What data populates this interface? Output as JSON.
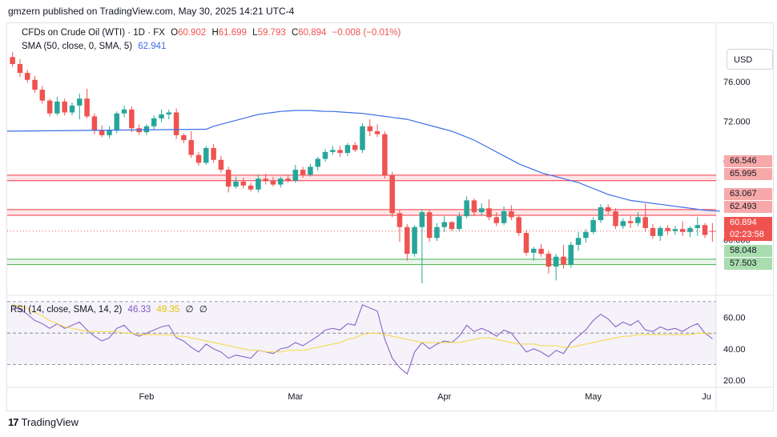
{
  "header": {
    "publisher": "gmzern published on TradingView.com, May 30, 2025 14:21 UTC-4"
  },
  "legend": {
    "symbol": "CFDs on Crude Oil (WTI) · 1D · FX",
    "open_label": "O",
    "open": "60.902",
    "high_label": "H",
    "high": "61.699",
    "low_label": "L",
    "low": "59.793",
    "close_label": "C",
    "close": "60.894",
    "change": "−0.008 (−0.01%)",
    "sma_label": "SMA (50, close, 0, SMA, 5)",
    "sma_value": "62.941",
    "rsi_label": "RSI (14, close, SMA, 14, 2)",
    "rsi_value": "46.33",
    "rsi_sma_value": "49.35",
    "rsi_extra1": "∅",
    "rsi_extra2": "∅"
  },
  "currency_button": "USD",
  "price_tags": {
    "resistance_upper_top": "66.546",
    "resistance_upper_bottom": "65.995",
    "resistance_lower_top": "63.067",
    "resistance_lower_bottom": "62.493",
    "last_price": "60.894",
    "countdown": "02:23:58",
    "support_top": "58.048",
    "support_bottom": "57.503"
  },
  "footer": {
    "brand": "TradingView",
    "logo": "17"
  },
  "colors": {
    "up": "#26a69a",
    "down": "#ef5350",
    "sma": "#3d6ee6",
    "rsi": "#7e57c2",
    "rsi_sma": "#f5d742",
    "resistance": "#f23645",
    "support": "#4caf50"
  },
  "chart_data": [
    {
      "type": "candlestick",
      "y_ticks": [
        "76.000",
        "72.000",
        "68.000",
        "60.000"
      ],
      "x_ticks": [
        "Feb",
        "Mar",
        "Apr",
        "May",
        "Ju"
      ],
      "ylim": [
        55.2,
        79.5
      ],
      "last_price": 60.894,
      "resistance_zones": [
        [
          65.995,
          66.546
        ],
        [
          62.493,
          63.067
        ]
      ],
      "support_zone": [
        57.503,
        58.048
      ],
      "candles": [
        [
          78.5,
          79.0,
          77.5,
          77.8
        ],
        [
          77.8,
          78.3,
          76.5,
          76.9
        ],
        [
          76.9,
          77.2,
          75.9,
          76.2
        ],
        [
          76.2,
          76.6,
          74.9,
          75.2
        ],
        [
          75.2,
          75.6,
          73.8,
          74.1
        ],
        [
          74.1,
          74.3,
          72.5,
          72.8
        ],
        [
          72.8,
          74.5,
          72.6,
          74.0
        ],
        [
          74.0,
          74.3,
          72.6,
          72.9
        ],
        [
          72.9,
          73.9,
          72.6,
          73.6
        ],
        [
          73.6,
          74.8,
          72.2,
          74.3
        ],
        [
          74.3,
          75.3,
          72.3,
          72.5
        ],
        [
          72.5,
          72.8,
          70.7,
          71.1
        ],
        [
          71.1,
          71.6,
          70.4,
          70.6
        ],
        [
          70.6,
          71.5,
          70.3,
          71.1
        ],
        [
          71.1,
          73.0,
          70.8,
          72.8
        ],
        [
          72.8,
          73.6,
          72.4,
          73.2
        ],
        [
          73.2,
          73.5,
          70.9,
          71.3
        ],
        [
          71.3,
          71.7,
          70.6,
          70.9
        ],
        [
          70.9,
          71.7,
          70.6,
          71.5
        ],
        [
          71.5,
          72.6,
          71.2,
          72.3
        ],
        [
          72.3,
          73.2,
          71.9,
          72.7
        ],
        [
          72.7,
          73.2,
          72.2,
          72.9
        ],
        [
          72.9,
          73.3,
          70.2,
          70.6
        ],
        [
          70.6,
          70.8,
          69.8,
          70.1
        ],
        [
          70.1,
          71.0,
          68.3,
          68.6
        ],
        [
          68.6,
          68.9,
          67.5,
          67.8
        ],
        [
          67.8,
          69.5,
          67.6,
          69.3
        ],
        [
          69.3,
          69.7,
          67.8,
          68.1
        ],
        [
          68.1,
          68.5,
          66.8,
          67.1
        ],
        [
          67.1,
          67.4,
          64.8,
          65.4
        ],
        [
          65.4,
          66.4,
          65.2,
          65.9
        ],
        [
          65.9,
          66.3,
          65.2,
          65.5
        ],
        [
          65.5,
          65.8,
          64.9,
          65.1
        ],
        [
          65.1,
          66.6,
          64.8,
          66.2
        ],
        [
          66.2,
          66.7,
          65.6,
          66.0
        ],
        [
          66.0,
          66.4,
          65.4,
          65.6
        ],
        [
          65.6,
          66.4,
          65.3,
          66.2
        ],
        [
          66.2,
          66.6,
          65.8,
          66.0
        ],
        [
          66.0,
          67.6,
          65.8,
          67.1
        ],
        [
          67.1,
          67.4,
          66.3,
          66.6
        ],
        [
          66.6,
          67.7,
          66.4,
          67.4
        ],
        [
          67.4,
          68.4,
          67.0,
          68.2
        ],
        [
          68.2,
          69.2,
          67.9,
          68.9
        ],
        [
          68.9,
          69.5,
          68.6,
          69.1
        ],
        [
          69.1,
          69.5,
          68.4,
          68.8
        ],
        [
          68.8,
          69.8,
          68.5,
          69.6
        ],
        [
          69.6,
          69.9,
          68.9,
          69.1
        ],
        [
          69.1,
          71.8,
          68.8,
          71.5
        ],
        [
          71.5,
          72.2,
          70.5,
          71.0
        ],
        [
          71.0,
          71.7,
          70.4,
          70.7
        ],
        [
          70.7,
          71.0,
          66.2,
          66.5
        ],
        [
          66.5,
          66.9,
          62.3,
          62.7
        ],
        [
          62.7,
          63.0,
          59.8,
          61.3
        ],
        [
          61.3,
          61.6,
          57.9,
          58.6
        ],
        [
          58.6,
          61.5,
          58.3,
          61.3
        ],
        [
          61.3,
          63.1,
          55.6,
          62.8
        ],
        [
          62.8,
          63.0,
          59.8,
          60.2
        ],
        [
          60.2,
          61.7,
          59.9,
          61.3
        ],
        [
          61.3,
          62.4,
          60.8,
          61.8
        ],
        [
          61.8,
          61.9,
          60.9,
          61.1
        ],
        [
          61.1,
          62.8,
          60.9,
          62.4
        ],
        [
          62.4,
          64.4,
          62.2,
          64.0
        ],
        [
          64.0,
          64.2,
          62.4,
          62.8
        ],
        [
          62.8,
          63.7,
          62.5,
          63.2
        ],
        [
          63.2,
          64.1,
          62.0,
          62.3
        ],
        [
          62.3,
          62.8,
          61.4,
          61.7
        ],
        [
          61.7,
          63.4,
          61.5,
          62.9
        ],
        [
          62.9,
          63.5,
          62.0,
          62.3
        ],
        [
          62.3,
          62.5,
          60.4,
          60.7
        ],
        [
          60.7,
          61.0,
          58.4,
          58.7
        ],
        [
          58.7,
          59.3,
          57.9,
          59.1
        ],
        [
          59.1,
          59.6,
          58.3,
          58.6
        ],
        [
          58.6,
          58.9,
          56.6,
          57.3
        ],
        [
          57.3,
          58.6,
          55.9,
          58.3
        ],
        [
          58.3,
          59.5,
          57.1,
          57.5
        ],
        [
          57.5,
          59.8,
          57.2,
          59.5
        ],
        [
          59.5,
          60.8,
          58.9,
          60.2
        ],
        [
          60.2,
          61.1,
          59.7,
          60.8
        ],
        [
          60.8,
          62.3,
          60.6,
          62.0
        ],
        [
          62.0,
          63.6,
          61.7,
          63.3
        ],
        [
          63.3,
          63.6,
          62.6,
          62.9
        ],
        [
          62.9,
          63.2,
          61.1,
          61.4
        ],
        [
          61.4,
          62.2,
          61.1,
          61.9
        ],
        [
          61.9,
          62.4,
          61.2,
          61.7
        ],
        [
          61.7,
          62.8,
          61.4,
          62.3
        ],
        [
          62.3,
          63.7,
          60.8,
          61.2
        ],
        [
          61.2,
          61.6,
          60.1,
          60.4
        ],
        [
          60.4,
          61.4,
          59.9,
          61.2
        ],
        [
          61.2,
          61.5,
          60.5,
          60.9
        ],
        [
          60.9,
          61.4,
          60.5,
          61.1
        ],
        [
          61.1,
          61.9,
          60.4,
          60.8
        ],
        [
          60.8,
          61.4,
          60.3,
          61.2
        ],
        [
          61.2,
          62.3,
          60.4,
          61.5
        ],
        [
          61.5,
          61.7,
          60.2,
          60.5
        ],
        [
          60.902,
          61.699,
          59.793,
          60.894
        ]
      ],
      "sma_series": [
        71.2,
        71.5,
        71.7,
        71.9,
        72.1,
        72.3,
        72.5,
        72.7,
        72.8,
        72.9,
        73.0,
        73.05,
        73.1,
        73.1,
        73.1,
        73.05,
        73.0,
        73.0,
        72.95,
        72.9,
        72.85,
        72.8,
        72.7,
        72.6,
        72.5,
        72.4,
        72.3,
        72.2,
        72.0,
        71.8,
        71.6,
        71.4,
        71.2,
        71.0,
        70.7,
        70.4,
        70.1,
        69.7,
        69.3,
        68.9,
        68.5,
        68.1,
        67.7,
        67.4,
        67.1,
        66.8,
        66.6,
        66.4,
        66.2,
        66.0,
        65.8,
        65.5,
        65.2,
        64.9,
        64.6,
        64.4,
        64.2,
        64.0,
        63.9,
        63.8,
        63.7,
        63.6,
        63.5,
        63.4,
        63.3,
        63.2,
        63.1,
        63.0,
        62.95,
        62.9
      ],
      "sma_start_index": 26
    },
    {
      "type": "line",
      "title": "RSI (14, close, SMA, 14, 2)",
      "y_ticks": [
        "60.00",
        "40.00",
        "20.00"
      ],
      "ylim": [
        17,
        73
      ],
      "band_levels": [
        70,
        50,
        30
      ],
      "series": [
        {
          "name": "RSI",
          "values": [
            67,
            65,
            62,
            58,
            56,
            53,
            56,
            53,
            55,
            57,
            52,
            48,
            45,
            47,
            53,
            55,
            50,
            48,
            50,
            52,
            54,
            55,
            47,
            45,
            41,
            38,
            43,
            40,
            38,
            34,
            36,
            35,
            34,
            39,
            38,
            37,
            40,
            41,
            44,
            42,
            45,
            48,
            52,
            53,
            52,
            56,
            55,
            68,
            66,
            64,
            46,
            34,
            28,
            24,
            38,
            44,
            40,
            43,
            45,
            44,
            48,
            55,
            51,
            53,
            51,
            48,
            52,
            50,
            44,
            38,
            40,
            38,
            35,
            39,
            37,
            44,
            48,
            52,
            58,
            62,
            59,
            54,
            57,
            55,
            58,
            52,
            51,
            54,
            52,
            53,
            51,
            54,
            56,
            50,
            46.33
          ]
        },
        {
          "name": "RSI SMA",
          "values": [
            68,
            67,
            66,
            63,
            61,
            58,
            56,
            54,
            53,
            52,
            51,
            51,
            51,
            51,
            51,
            50,
            50,
            49,
            49,
            49,
            49,
            49,
            48,
            48,
            47,
            46,
            45,
            44,
            43,
            42,
            41,
            40,
            39,
            39,
            38,
            38,
            38,
            39,
            39,
            39,
            40,
            41,
            42,
            43,
            44,
            46,
            47,
            49,
            50,
            50,
            49,
            48,
            47,
            46,
            45,
            44,
            44,
            44,
            44,
            44,
            44,
            45,
            46,
            47,
            47,
            46,
            45,
            44,
            43,
            43,
            43,
            42,
            42,
            42,
            41,
            41,
            42,
            43,
            44,
            45,
            46,
            47,
            48,
            48,
            49,
            49,
            49,
            49,
            49,
            49,
            49,
            49,
            50,
            50,
            49.35
          ]
        }
      ]
    }
  ]
}
